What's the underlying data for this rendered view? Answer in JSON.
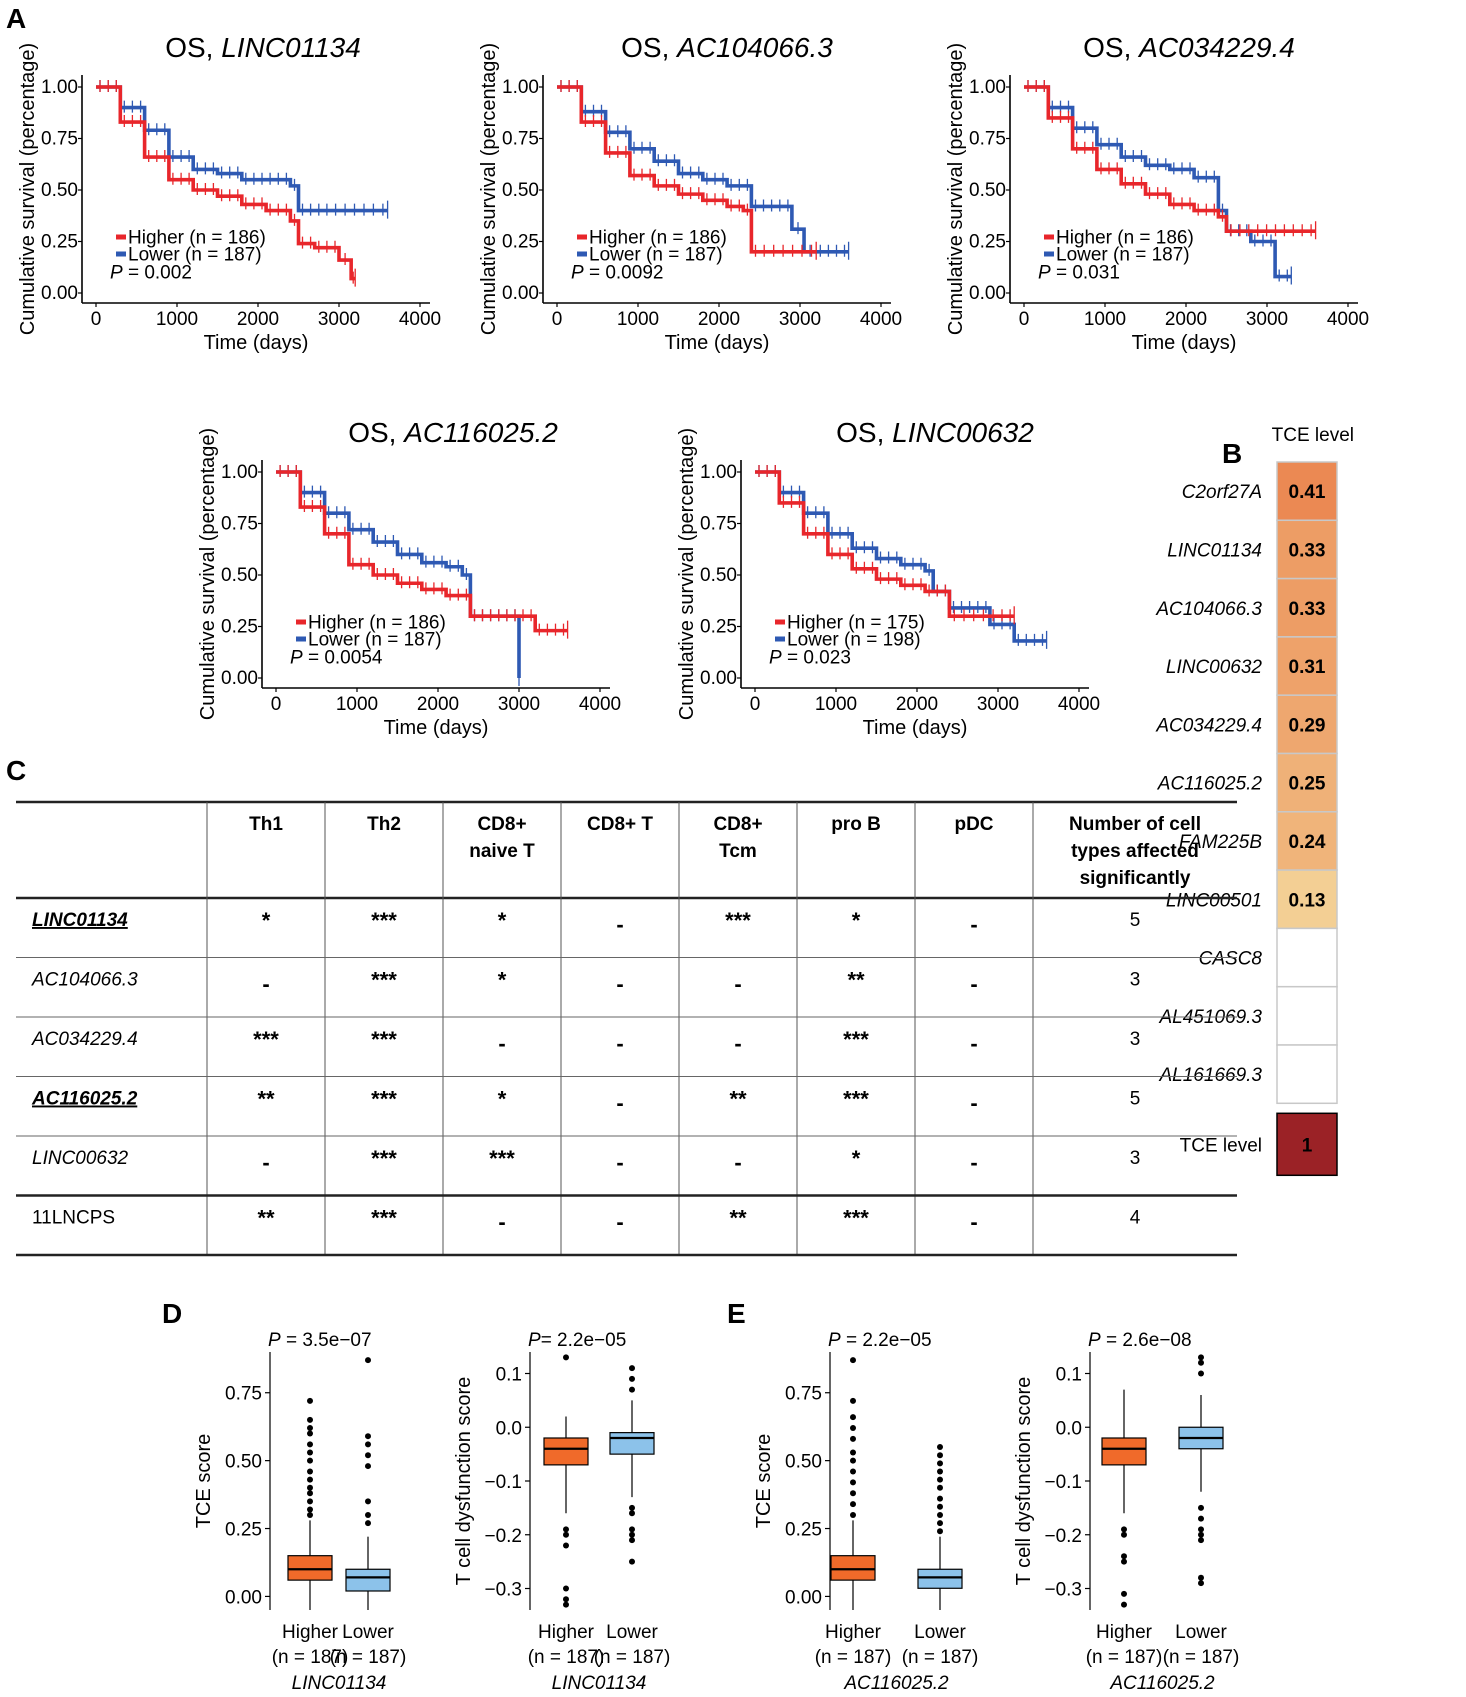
{
  "panel_labels": [
    "A",
    "B",
    "C",
    "D",
    "E"
  ],
  "colors": {
    "higher": "#e8262b",
    "lower": "#2e59b3",
    "box_higher": "#f06a2a",
    "box_lower": "#8cc2ea",
    "tce_max": "#9b2226"
  },
  "common": {
    "higher_label": "Higher",
    "lower_label": "Lower",
    "p_symbol": "P",
    "km_ylabel": "Cumulative survival (percentage)",
    "km_xlabel": "Time (days)",
    "km_xticks": [
      "0",
      "1000",
      "2000",
      "3000",
      "4000"
    ],
    "km_yticks": [
      "0.00",
      "0.25",
      "0.50",
      "0.75",
      "1.00"
    ]
  },
  "chart_data": [
    {
      "type": "line",
      "panel": "A",
      "title_prefix": "OS, ",
      "gene": "LINC01134",
      "xlabel": "Time (days)",
      "ylabel": "Cumulative survival (percentage)",
      "xlim": [
        0,
        4000
      ],
      "ylim": [
        0,
        1
      ],
      "legend_higher": "Higher (n = 186)",
      "legend_lower": "Lower (n = 187)",
      "p_text": " = 0.002",
      "series": [
        {
          "name": "Higher",
          "x": [
            0,
            300,
            600,
            900,
            1200,
            1500,
            1800,
            2100,
            2400,
            2500,
            2700,
            3000,
            3150,
            3200
          ],
          "y": [
            1.0,
            0.83,
            0.66,
            0.55,
            0.5,
            0.47,
            0.43,
            0.4,
            0.35,
            0.24,
            0.22,
            0.16,
            0.07,
            0.07
          ]
        },
        {
          "name": "Lower",
          "x": [
            0,
            300,
            600,
            900,
            1200,
            1500,
            1800,
            2100,
            2400,
            2500,
            2900,
            3600
          ],
          "y": [
            1.0,
            0.9,
            0.79,
            0.66,
            0.6,
            0.58,
            0.55,
            0.55,
            0.52,
            0.4,
            0.4,
            0.4
          ]
        }
      ]
    },
    {
      "type": "line",
      "panel": "A",
      "title_prefix": "OS, ",
      "gene": "AC104066.3",
      "xlabel": "Time (days)",
      "ylabel": "Cumulative survival (percentage)",
      "xlim": [
        0,
        4000
      ],
      "ylim": [
        0,
        1
      ],
      "legend_higher": "Higher (n = 186)",
      "legend_lower": "Lower (n = 187)",
      "p_text": " = 0.0092",
      "series": [
        {
          "name": "Higher",
          "x": [
            0,
            300,
            600,
            900,
            1200,
            1500,
            1800,
            2100,
            2300,
            2400,
            2500,
            3200
          ],
          "y": [
            1.0,
            0.83,
            0.68,
            0.57,
            0.52,
            0.48,
            0.45,
            0.42,
            0.4,
            0.2,
            0.2,
            0.2
          ]
        },
        {
          "name": "Lower",
          "x": [
            0,
            300,
            600,
            900,
            1200,
            1500,
            1800,
            2100,
            2400,
            2700,
            2900,
            3050,
            3200,
            3600
          ],
          "y": [
            1.0,
            0.88,
            0.78,
            0.7,
            0.64,
            0.58,
            0.55,
            0.52,
            0.42,
            0.42,
            0.31,
            0.2,
            0.2,
            0.2
          ]
        }
      ]
    },
    {
      "type": "line",
      "panel": "A",
      "title_prefix": "OS, ",
      "gene": "AC034229.4",
      "xlabel": "Time (days)",
      "ylabel": "Cumulative survival (percentage)",
      "xlim": [
        0,
        4000
      ],
      "ylim": [
        0,
        1
      ],
      "legend_higher": "Higher (n = 186)",
      "legend_lower": "Lower (n = 187)",
      "p_text": " = 0.031",
      "series": [
        {
          "name": "Higher",
          "x": [
            0,
            300,
            600,
            900,
            1200,
            1500,
            1800,
            2100,
            2400,
            2500,
            3600
          ],
          "y": [
            1.0,
            0.85,
            0.7,
            0.6,
            0.53,
            0.48,
            0.43,
            0.4,
            0.37,
            0.3,
            0.3
          ]
        },
        {
          "name": "Lower",
          "x": [
            0,
            300,
            600,
            900,
            1200,
            1500,
            1800,
            2100,
            2400,
            2500,
            2800,
            3100,
            3300
          ],
          "y": [
            1.0,
            0.9,
            0.8,
            0.72,
            0.66,
            0.62,
            0.6,
            0.56,
            0.4,
            0.3,
            0.25,
            0.08,
            0.08
          ]
        }
      ]
    },
    {
      "type": "line",
      "panel": "A",
      "title_prefix": "OS, ",
      "gene": "AC116025.2",
      "xlabel": "Time (days)",
      "ylabel": "Cumulative survival (percentage)",
      "xlim": [
        0,
        4000
      ],
      "ylim": [
        0,
        1
      ],
      "legend_higher": "Higher (n = 186)",
      "legend_lower": "Lower (n = 187)",
      "p_text": " = 0.0054",
      "series": [
        {
          "name": "Higher",
          "x": [
            0,
            300,
            600,
            900,
            1200,
            1500,
            1800,
            2100,
            2300,
            2400,
            2900,
            3200,
            3600
          ],
          "y": [
            1.0,
            0.83,
            0.7,
            0.55,
            0.5,
            0.46,
            0.43,
            0.4,
            0.4,
            0.3,
            0.3,
            0.23,
            0.23
          ]
        },
        {
          "name": "Lower",
          "x": [
            0,
            300,
            600,
            900,
            1200,
            1500,
            1800,
            2100,
            2300,
            2400,
            2900,
            3000
          ],
          "y": [
            1.0,
            0.9,
            0.8,
            0.72,
            0.66,
            0.6,
            0.56,
            0.54,
            0.5,
            0.3,
            0.3,
            0.0
          ]
        }
      ]
    },
    {
      "type": "line",
      "panel": "A",
      "title_prefix": "OS, ",
      "gene": "LINC00632",
      "xlabel": "Time (days)",
      "ylabel": "Cumulative survival (percentage)",
      "xlim": [
        0,
        4000
      ],
      "ylim": [
        0,
        1
      ],
      "legend_higher": "Higher (n = 175)",
      "legend_lower": "Lower (n = 198)",
      "p_text": " = 0.023",
      "series": [
        {
          "name": "Higher",
          "x": [
            0,
            300,
            600,
            900,
            1200,
            1500,
            1800,
            2100,
            2400,
            3000,
            3200
          ],
          "y": [
            1.0,
            0.85,
            0.7,
            0.6,
            0.53,
            0.48,
            0.45,
            0.42,
            0.3,
            0.3,
            0.3
          ]
        },
        {
          "name": "Lower",
          "x": [
            0,
            300,
            600,
            900,
            1200,
            1500,
            1800,
            2100,
            2200,
            2400,
            2900,
            3200,
            3600
          ],
          "y": [
            1.0,
            0.9,
            0.8,
            0.7,
            0.63,
            0.58,
            0.55,
            0.52,
            0.42,
            0.34,
            0.26,
            0.18,
            0.18
          ]
        }
      ]
    },
    {
      "type": "heatmap",
      "panel": "B",
      "title": "TCE level",
      "genes": [
        "C2orf27A",
        "LINC01134",
        "AC104066.3",
        "LINC00632",
        "AC034229.4",
        "AC116025.2",
        "FAM225B",
        "LINC00501",
        "CASC8",
        "AL451069.3",
        "AL161669.3"
      ],
      "values": [
        0.41,
        0.33,
        0.33,
        0.31,
        0.29,
        0.25,
        0.24,
        0.13,
        null,
        null,
        null
      ],
      "value_labels": [
        "0.41",
        "0.33",
        "0.33",
        "0.31",
        "0.29",
        "0.25",
        "0.24",
        "0.13",
        "",
        "",
        ""
      ],
      "legend_label": "TCE level",
      "legend_value": "1"
    },
    {
      "type": "table",
      "panel": "C",
      "columns": [
        "Th1",
        "Th2",
        "CD8+|naive T",
        "CD8+ T",
        "CD8+|Tcm",
        "pro B",
        "pDC",
        "Number of cell|types affected|significantly"
      ],
      "rows": [
        {
          "name": "LINC01134",
          "style": "bold-underline-italic",
          "cells": [
            "*",
            "***",
            "*",
            "-",
            "***",
            "*",
            "-",
            "5"
          ]
        },
        {
          "name": "AC104066.3",
          "style": "italic",
          "cells": [
            "-",
            "***",
            "*",
            "-",
            "-",
            "**",
            "-",
            "3"
          ]
        },
        {
          "name": "AC034229.4",
          "style": "italic",
          "cells": [
            "***",
            "***",
            "-",
            "-",
            "-",
            "***",
            "-",
            "3"
          ]
        },
        {
          "name": "AC116025.2",
          "style": "bold-underline-italic",
          "cells": [
            "**",
            "***",
            "*",
            "-",
            "**",
            "***",
            "-",
            "5"
          ]
        },
        {
          "name": "LINC00632",
          "style": "italic",
          "cells": [
            "-",
            "***",
            "***",
            "-",
            "-",
            "*",
            "-",
            "3"
          ]
        },
        {
          "name": "11LNCPS",
          "style": "normal",
          "cells": [
            "**",
            "***",
            "-",
            "-",
            "**",
            "***",
            "-",
            "4"
          ]
        }
      ]
    },
    {
      "type": "box",
      "panel": "D",
      "gene": "LINC01134",
      "ylabel": "TCE score",
      "p_text": " = 3.5e−07",
      "ylim": [
        -0.05,
        0.9
      ],
      "yticks": [
        "0.00",
        "0.25",
        "0.50",
        "0.75"
      ],
      "ytick_values": [
        0,
        0.25,
        0.5,
        0.75
      ],
      "groups": [
        {
          "name": "Higher",
          "n": "(n = 187)",
          "q1": 0.06,
          "median": 0.1,
          "q3": 0.15,
          "whisker_low": -0.05,
          "whisker_high": 0.28,
          "outliers": [
            0.3,
            0.32,
            0.35,
            0.38,
            0.4,
            0.43,
            0.46,
            0.5,
            0.53,
            0.56,
            0.6,
            0.62,
            0.65,
            0.72
          ]
        },
        {
          "name": "Lower",
          "n": "(n = 187)",
          "q1": 0.02,
          "median": 0.07,
          "q3": 0.1,
          "whisker_low": -0.05,
          "whisker_high": 0.22,
          "outliers": [
            0.27,
            0.3,
            0.35,
            0.48,
            0.52,
            0.56,
            0.59,
            0.87
          ]
        }
      ]
    },
    {
      "type": "box",
      "panel": "D",
      "gene": "LINC01134",
      "ylabel": "T cell dysfunction score",
      "p_text": "= 2.2e−05",
      "ylim": [
        -0.34,
        0.14
      ],
      "yticks": [
        "−0.3",
        "−0.2",
        "−0.1",
        "0.0",
        "0.1"
      ],
      "ytick_values": [
        -0.3,
        -0.2,
        -0.1,
        0,
        0.1
      ],
      "groups": [
        {
          "name": "Higher",
          "n": "(n = 187)",
          "q1": -0.07,
          "median": -0.04,
          "q3": -0.02,
          "whisker_low": -0.16,
          "whisker_high": 0.02,
          "outliers": [
            -0.19,
            -0.2,
            -0.22,
            -0.3,
            -0.32,
            -0.33,
            0.13
          ]
        },
        {
          "name": "Lower",
          "n": "(n = 187)",
          "q1": -0.05,
          "median": -0.02,
          "q3": -0.01,
          "whisker_low": -0.13,
          "whisker_high": 0.05,
          "outliers": [
            -0.15,
            -0.16,
            -0.19,
            -0.2,
            -0.21,
            -0.25,
            0.07,
            0.09,
            0.11
          ]
        }
      ]
    },
    {
      "type": "box",
      "panel": "E",
      "gene": "AC116025.2",
      "ylabel": "TCE score",
      "p_text": " = 2.2e−05",
      "ylim": [
        -0.05,
        0.9
      ],
      "yticks": [
        "0.00",
        "0.25",
        "0.50",
        "0.75"
      ],
      "ytick_values": [
        0,
        0.25,
        0.5,
        0.75
      ],
      "groups": [
        {
          "name": "Higher",
          "n": "(n = 187)",
          "q1": 0.06,
          "median": 0.1,
          "q3": 0.15,
          "whisker_low": -0.05,
          "whisker_high": 0.28,
          "outliers": [
            0.3,
            0.34,
            0.38,
            0.42,
            0.46,
            0.5,
            0.53,
            0.58,
            0.62,
            0.66,
            0.72,
            0.87
          ]
        },
        {
          "name": "Lower",
          "n": "(n = 187)",
          "q1": 0.03,
          "median": 0.07,
          "q3": 0.1,
          "whisker_low": -0.05,
          "whisker_high": 0.22,
          "outliers": [
            0.24,
            0.27,
            0.3,
            0.33,
            0.36,
            0.4,
            0.43,
            0.46,
            0.49,
            0.52,
            0.55
          ]
        }
      ]
    },
    {
      "type": "box",
      "panel": "E",
      "gene": "AC116025.2",
      "ylabel": "T cell dysfunction score",
      "p_text": " = 2.6e−08",
      "ylim": [
        -0.34,
        0.14
      ],
      "yticks": [
        "−0.3",
        "−0.2",
        "−0.1",
        "0.0",
        "0.1"
      ],
      "ytick_values": [
        -0.3,
        -0.2,
        -0.1,
        0,
        0.1
      ],
      "groups": [
        {
          "name": "Higher",
          "n": "(n = 187)",
          "q1": -0.07,
          "median": -0.04,
          "q3": -0.02,
          "whisker_low": -0.16,
          "whisker_high": 0.07,
          "outliers": [
            -0.19,
            -0.2,
            -0.24,
            -0.25,
            -0.31,
            -0.33
          ]
        },
        {
          "name": "Lower",
          "n": "(n = 187)",
          "q1": -0.04,
          "median": -0.02,
          "q3": 0.0,
          "whisker_low": -0.12,
          "whisker_high": 0.06,
          "outliers": [
            -0.15,
            -0.17,
            -0.19,
            -0.2,
            -0.21,
            -0.28,
            -0.29,
            0.1,
            0.12,
            0.13
          ]
        }
      ]
    }
  ]
}
